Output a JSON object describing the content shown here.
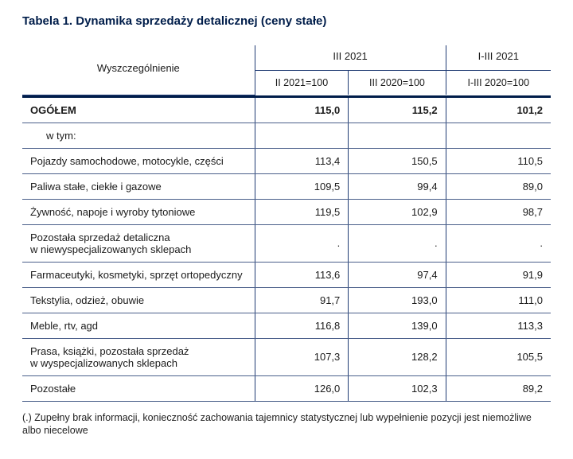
{
  "title": "Tabela 1. Dynamika sprzedaży detalicznej (ceny stałe)",
  "colors": {
    "heading": "#001d4a",
    "border": "#1f3b73",
    "row_border": "#4a5f8a",
    "text": "#1a1a1a",
    "bg": "#ffffff"
  },
  "header": {
    "label": "Wyszczególnienie",
    "group1": "III 2021",
    "group2": "I-III 2021",
    "sub1": "II 2021=100",
    "sub2": "III 2020=100",
    "sub3": "I-III 2020=100"
  },
  "rows": [
    {
      "label": "OGÓŁEM",
      "v1": "115,0",
      "v2": "115,2",
      "v3": "101,2",
      "bold": true
    },
    {
      "label": "w tym:",
      "v1": "",
      "v2": "",
      "v3": "",
      "indent": true
    },
    {
      "label": "Pojazdy samochodowe, motocykle, części",
      "v1": "113,4",
      "v2": "150,5",
      "v3": "110,5"
    },
    {
      "label": "Paliwa stałe, ciekłe i gazowe",
      "v1": "109,5",
      "v2": "99,4",
      "v3": "89,0"
    },
    {
      "label": "Żywność, napoje i wyroby tytoniowe",
      "v1": "119,5",
      "v2": "102,9",
      "v3": "98,7"
    },
    {
      "label": "Pozostała sprzedaż detaliczna\nw niewyspecjalizowanych sklepach",
      "v1": ".",
      "v2": ".",
      "v3": "."
    },
    {
      "label": "Farmaceutyki, kosmetyki, sprzęt ortopedyczny",
      "v1": "113,6",
      "v2": "97,4",
      "v3": "91,9"
    },
    {
      "label": "Tekstylia, odzież, obuwie",
      "v1": "91,7",
      "v2": "193,0",
      "v3": "111,0"
    },
    {
      "label": "Meble, rtv, agd",
      "v1": "116,8",
      "v2": "139,0",
      "v3": "113,3"
    },
    {
      "label": "Prasa, książki, pozostała sprzedaż\n w wyspecjalizowanych sklepach",
      "v1": "107,3",
      "v2": "128,2",
      "v3": "105,5"
    },
    {
      "label": "Pozostałe",
      "v1": "126,0",
      "v2": "102,3",
      "v3": "89,2"
    }
  ],
  "footnote": "(.) Zupełny brak informacji, konieczność zachowania tajemnicy statystycznej lub wypełnienie pozycji jest niemożliwe albo niecelowe"
}
